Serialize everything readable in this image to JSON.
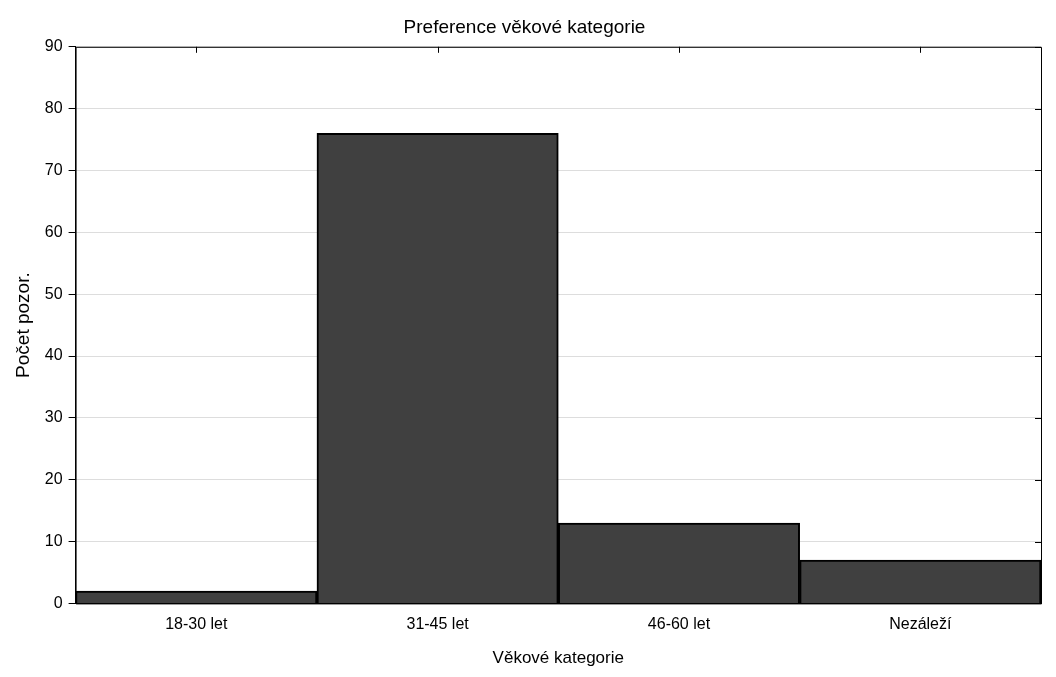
{
  "chart_data": {
    "type": "bar",
    "title": "Preference věkové kategorie",
    "xlabel": "Věkové kategorie",
    "ylabel": "Počet pozor.",
    "categories": [
      "18-30 let",
      "31-45 let",
      "46-60 let",
      "Nezáleží"
    ],
    "values": [
      2,
      76,
      13,
      7
    ],
    "color": "#404040",
    "ylim": [
      0,
      90
    ],
    "yticks": [
      0,
      10,
      20,
      30,
      40,
      50,
      60,
      70,
      80,
      90
    ],
    "grid": "y",
    "legend": false
  }
}
